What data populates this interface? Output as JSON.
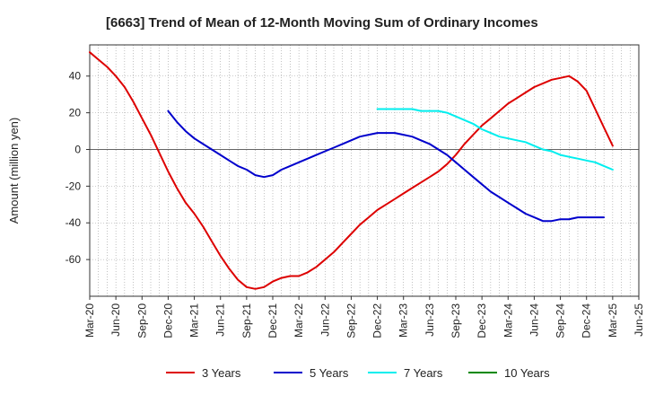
{
  "chart_data": {
    "type": "line",
    "title": "[6663]  Trend of Mean of 12-Month Moving Sum of Ordinary Incomes",
    "xlabel": "",
    "ylabel": "Amount (million yen)",
    "x_tick_labels": [
      "Mar-20",
      "Jun-20",
      "Sep-20",
      "Dec-20",
      "Mar-21",
      "Jun-21",
      "Sep-21",
      "Dec-21",
      "Mar-22",
      "Jun-22",
      "Sep-22",
      "Dec-22",
      "Mar-23",
      "Jun-23",
      "Sep-23",
      "Dec-23",
      "Mar-24",
      "Jun-24",
      "Sep-24",
      "Dec-24",
      "Mar-25",
      "Jun-25"
    ],
    "y_ticks": [
      -60,
      -40,
      -20,
      0,
      20,
      40
    ],
    "y_tick_labels": [
      "-60",
      "-40",
      "-20",
      "0",
      "20",
      "40"
    ],
    "ylim": [
      -80,
      57
    ],
    "x_start": "Mar-20",
    "x_months_span": 63,
    "series": [
      {
        "name": "3 Years",
        "color": "#dd0000",
        "start_month_index": 0,
        "values": [
          53,
          49,
          45,
          40,
          34,
          26,
          17,
          8,
          -2,
          -12,
          -21,
          -29,
          -35,
          -42,
          -50,
          -58,
          -65,
          -71,
          -75,
          -76,
          -75,
          -72,
          -70,
          -69,
          -69,
          -67,
          -64,
          -60,
          -56,
          -51,
          -46,
          -41,
          -37,
          -33,
          -30,
          -27,
          -24,
          -21,
          -18,
          -15,
          -12,
          -8,
          -3,
          3,
          8,
          13,
          17,
          21,
          25,
          28,
          31,
          34,
          36,
          38,
          39,
          40,
          37,
          32,
          22,
          12,
          2
        ]
      },
      {
        "name": "5 Years",
        "color": "#0000cc",
        "start_month_index": 9,
        "values": [
          21,
          15,
          10,
          6,
          3,
          0,
          -3,
          -6,
          -9,
          -11,
          -14,
          -15,
          -14,
          -11,
          -9,
          -7,
          -5,
          -3,
          -1,
          1,
          3,
          5,
          7,
          8,
          9,
          9,
          9,
          8,
          7,
          5,
          3,
          0,
          -3,
          -7,
          -11,
          -15,
          -19,
          -23,
          -26,
          -29,
          -32,
          -35,
          -37,
          -39,
          -39,
          -38,
          -38,
          -37,
          -37,
          -37,
          -37
        ]
      },
      {
        "name": "7 Years",
        "color": "#00eeee",
        "start_month_index": 33,
        "values": [
          22,
          22,
          22,
          22,
          22,
          21,
          21,
          21,
          20,
          18,
          16,
          14,
          11,
          9,
          7,
          6,
          5,
          4,
          2,
          0,
          -1,
          -3,
          -4,
          -5,
          -6,
          -7,
          -9,
          -11
        ]
      },
      {
        "name": "10 Years",
        "color": "#008800",
        "start_month_index": 0,
        "values": []
      }
    ],
    "legend_position": "bottom"
  }
}
